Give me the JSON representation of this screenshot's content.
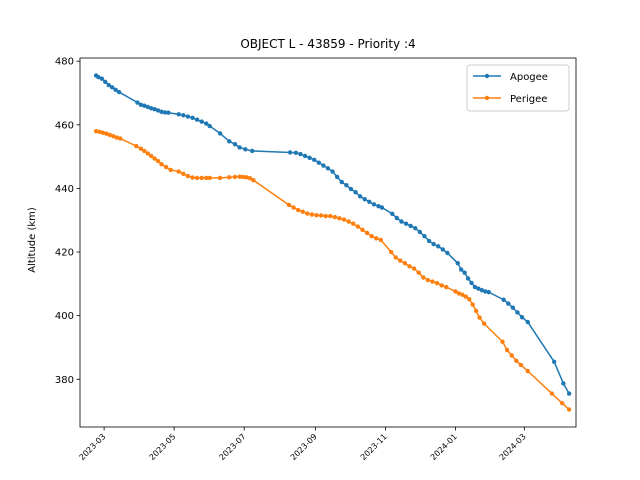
{
  "chart_data": {
    "type": "line",
    "title": "OBJECT L - 43859 - Priority :4",
    "xlabel": "",
    "ylabel": "Altitude (km)",
    "xlim": [
      "2023-02-08",
      "2024-04-15"
    ],
    "ylim": [
      365,
      481
    ],
    "yticks": [
      380,
      400,
      420,
      440,
      460,
      480
    ],
    "xticks": [
      "2023-03",
      "2023-05",
      "2023-07",
      "2023-09",
      "2023-11",
      "2024-01",
      "2024-03"
    ],
    "grid": false,
    "legend_position": "top-right",
    "colors": {
      "Apogee": "#1f77b4",
      "Perigee": "#ff7f0e"
    },
    "series": [
      {
        "name": "Apogee",
        "x": [
          "2023-02-22",
          "2023-02-24",
          "2023-02-27",
          "2023-03-02",
          "2023-03-05",
          "2023-03-08",
          "2023-03-11",
          "2023-03-14",
          "2023-03-30",
          "2023-04-02",
          "2023-04-05",
          "2023-04-08",
          "2023-04-11",
          "2023-04-14",
          "2023-04-17",
          "2023-04-20",
          "2023-04-23",
          "2023-04-26",
          "2023-05-05",
          "2023-05-09",
          "2023-05-13",
          "2023-05-17",
          "2023-05-21",
          "2023-05-25",
          "2023-05-29",
          "2023-06-01",
          "2023-06-10",
          "2023-06-18",
          "2023-06-23",
          "2023-06-27",
          "2023-07-02",
          "2023-07-08",
          "2023-08-10",
          "2023-08-15",
          "2023-08-19",
          "2023-08-23",
          "2023-08-27",
          "2023-08-31",
          "2023-09-04",
          "2023-09-08",
          "2023-09-12",
          "2023-09-16",
          "2023-09-20",
          "2023-09-24",
          "2023-09-28",
          "2023-10-02",
          "2023-10-06",
          "2023-10-10",
          "2023-10-14",
          "2023-10-18",
          "2023-10-22",
          "2023-10-26",
          "2023-10-29",
          "2023-11-07",
          "2023-11-11",
          "2023-11-15",
          "2023-11-19",
          "2023-11-23",
          "2023-11-27",
          "2023-12-01",
          "2023-12-05",
          "2023-12-09",
          "2023-12-13",
          "2023-12-17",
          "2023-12-21",
          "2023-12-25",
          "2024-01-03",
          "2024-01-06",
          "2024-01-09",
          "2024-01-12",
          "2024-01-15",
          "2024-01-18",
          "2024-01-21",
          "2024-01-24",
          "2024-01-27",
          "2024-01-30",
          "2024-02-12",
          "2024-02-16",
          "2024-02-20",
          "2024-02-24",
          "2024-02-28",
          "2024-03-04",
          "2024-03-27",
          "2024-04-04",
          "2024-04-09"
        ],
        "y": [
          475.5,
          475,
          474.5,
          473.5,
          472.5,
          471.8,
          471,
          470.3,
          467,
          466.3,
          466,
          465.6,
          465.2,
          464.9,
          464.5,
          464.1,
          463.9,
          463.8,
          463.3,
          463,
          462.6,
          462.2,
          461.6,
          461,
          460.4,
          459.6,
          457.3,
          454.8,
          453.9,
          452.9,
          452.3,
          451.8,
          451.3,
          451.2,
          450.8,
          450.2,
          449.6,
          449,
          448.1,
          447.2,
          446.3,
          445.3,
          443.6,
          442,
          441,
          439.8,
          438.8,
          437.5,
          436.6,
          435.8,
          435,
          434.4,
          434,
          432,
          430.7,
          429.6,
          428.9,
          428.2,
          427.5,
          426.3,
          425,
          423.5,
          422.5,
          421.8,
          420.8,
          419.7,
          416.5,
          414.5,
          413.5,
          411.7,
          410.3,
          409,
          408.5,
          408,
          407.6,
          407.4,
          405,
          403.8,
          402.5,
          401,
          399.5,
          398,
          385.5,
          378.7,
          375.5
        ]
      },
      {
        "name": "Perigee",
        "x": [
          "2023-02-22",
          "2023-02-25",
          "2023-02-28",
          "2023-03-03",
          "2023-03-06",
          "2023-03-09",
          "2023-03-12",
          "2023-03-15",
          "2023-03-29",
          "2023-04-02",
          "2023-04-05",
          "2023-04-08",
          "2023-04-11",
          "2023-04-14",
          "2023-04-17",
          "2023-04-20",
          "2023-04-24",
          "2023-04-28",
          "2023-05-05",
          "2023-05-09",
          "2023-05-13",
          "2023-05-17",
          "2023-05-21",
          "2023-05-25",
          "2023-05-29",
          "2023-06-01",
          "2023-06-10",
          "2023-06-18",
          "2023-06-23",
          "2023-06-27",
          "2023-06-30",
          "2023-07-03",
          "2023-07-06",
          "2023-07-09",
          "2023-08-09",
          "2023-08-13",
          "2023-08-17",
          "2023-08-21",
          "2023-08-25",
          "2023-08-29",
          "2023-09-02",
          "2023-09-06",
          "2023-09-10",
          "2023-09-14",
          "2023-09-18",
          "2023-09-22",
          "2023-09-26",
          "2023-09-30",
          "2023-10-04",
          "2023-10-08",
          "2023-10-12",
          "2023-10-16",
          "2023-10-20",
          "2023-10-24",
          "2023-10-28",
          "2023-11-06",
          "2023-11-10",
          "2023-11-14",
          "2023-11-18",
          "2023-11-22",
          "2023-11-26",
          "2023-11-30",
          "2023-12-04",
          "2023-12-08",
          "2023-12-12",
          "2023-12-16",
          "2023-12-20",
          "2023-12-24",
          "2024-01-01",
          "2024-01-04",
          "2024-01-07",
          "2024-01-10",
          "2024-01-13",
          "2024-01-16",
          "2024-01-19",
          "2024-01-22",
          "2024-01-26",
          "2024-02-11",
          "2024-02-15",
          "2024-02-19",
          "2024-02-23",
          "2024-02-27",
          "2024-03-04",
          "2024-03-25",
          "2024-04-03",
          "2024-04-09"
        ],
        "y": [
          458,
          457.8,
          457.5,
          457.2,
          456.8,
          456.4,
          456,
          455.7,
          453.3,
          452.5,
          451.8,
          451,
          450.2,
          449.4,
          448.6,
          447.6,
          446.7,
          445.8,
          445.3,
          444.6,
          443.9,
          443.4,
          443.3,
          443.3,
          443.3,
          443.3,
          443.3,
          443.5,
          443.6,
          443.7,
          443.6,
          443.5,
          443.2,
          442.6,
          434.8,
          434,
          433.2,
          432.7,
          432.1,
          431.8,
          431.6,
          431.5,
          431.3,
          431.3,
          431,
          430.6,
          430.2,
          429.6,
          428.9,
          428,
          427,
          426,
          425,
          424.3,
          423.8,
          420,
          418.3,
          417.3,
          416.5,
          415.5,
          414.8,
          413.5,
          412,
          411.2,
          410.7,
          410.2,
          409.5,
          409,
          407.6,
          407,
          406.6,
          406,
          405.2,
          403.5,
          401.5,
          399.4,
          397.5,
          391.8,
          389.2,
          387.5,
          385.8,
          384.5,
          382.6,
          375.5,
          372.5,
          370.5
        ]
      }
    ]
  }
}
